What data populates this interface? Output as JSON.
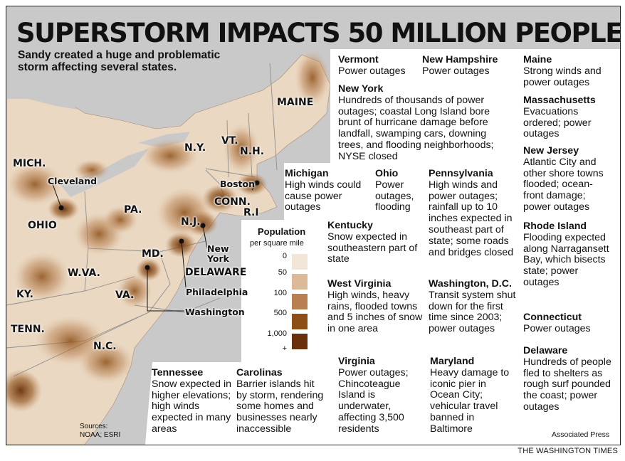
{
  "title": "SUPERSTORM IMPACTS 50 MILLION PEOPLE",
  "subtitle": "Sandy created a huge and problematic storm affecting several states.",
  "state_labels": [
    "MAINE",
    "N.Y.",
    "VT.",
    "N.H.",
    "MICH.",
    "PA.",
    "OHIO",
    "CONN.",
    "R.I",
    "N.J.",
    "MD.",
    "W.VA.",
    "KY.",
    "VA.",
    "TENN.",
    "N.C.",
    "DELAWARE"
  ],
  "city_labels": [
    "Cleveland",
    "Boston",
    "New York",
    "Philadelphia",
    "Washington"
  ],
  "legend": {
    "title": "Population",
    "subtitle": "per square mile",
    "ticks": [
      "0",
      "50",
      "100",
      "500",
      "1,000",
      "+"
    ],
    "colors": [
      "#f1e6d8",
      "#dcb999",
      "#b88050",
      "#8d4f17",
      "#6a300c"
    ]
  },
  "impacts": [
    {
      "state": "Vermont",
      "text": "Power outages"
    },
    {
      "state": "New Hampshire",
      "text": "Power outages"
    },
    {
      "state": "Maine",
      "text": "Strong winds and power outages"
    },
    {
      "state": "New York",
      "text": "Hundreds of thousands of power outages; coastal Long Island bore brunt of hurricane damage before landfall, swamping cars, downing trees, and flooding neighborhoods; NYSE closed"
    },
    {
      "state": "Massachusetts",
      "text": "Evacuations ordered; power outages"
    },
    {
      "state": "New Jersey",
      "text": "Atlantic City and other shore towns flooded; ocean-front damage; power outages"
    },
    {
      "state": "Michigan",
      "text": "High winds could cause power outages"
    },
    {
      "state": "Ohio",
      "text": "Power outages, flooding"
    },
    {
      "state": "Pennsylvania",
      "text": "High winds and power outages; rainfall up to 10 inches expected in southeast part of state; some roads and bridges closed"
    },
    {
      "state": "Kentucky",
      "text": "Snow expected in southeastern part of state"
    },
    {
      "state": "Rhode Island",
      "text": "Flooding expected along Narragansett Bay, which bisects state; power outages"
    },
    {
      "state": "West Virginia",
      "text": "High winds, heavy rains, flooded towns and 5 inches of snow in one area"
    },
    {
      "state": "Washington, D.C.",
      "text": "Transit system shut down for the first time since 2003; power outages"
    },
    {
      "state": "Connecticut",
      "text": "Power outages"
    },
    {
      "state": "Delaware",
      "text": "Hundreds of people fled to shelters as rough surf pounded the coast; power outages"
    },
    {
      "state": "Tennessee",
      "text": "Snow expected in higher elevations; high winds expected in many areas"
    },
    {
      "state": "Carolinas",
      "text": "Barrier islands hit by storm, rendering some homes and businesses nearly inaccessible"
    },
    {
      "state": "Virginia",
      "text": "Power outages; Chincoteague Island is underwater, affecting 3,500 residents"
    },
    {
      "state": "Maryland",
      "text": "Heavy damage to iconic pier in Ocean City; vehicular travel banned in Baltimore"
    }
  ],
  "sources": "Sources: NOAA; ESRI",
  "credit": "Associated Press",
  "footer": "THE WASHINGTON TIMES"
}
